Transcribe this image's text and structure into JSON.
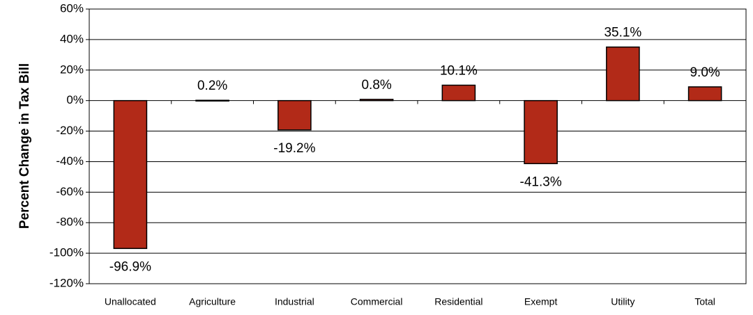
{
  "chart_data": {
    "type": "bar",
    "y_axis_label": "Percent Change in Tax Bill",
    "categories": [
      "Unallocated",
      "Agriculture",
      "Industrial",
      "Commercial",
      "Residential",
      "Exempt",
      "Utility",
      "Total"
    ],
    "values": [
      -96.9,
      0.2,
      -19.2,
      0.8,
      10.1,
      -41.3,
      35.1,
      9.0
    ],
    "value_labels": [
      "-96.9%",
      "0.2%",
      "-19.2%",
      "0.8%",
      "10.1%",
      "-41.3%",
      "35.1%",
      "9.0%"
    ],
    "color": "#b22a18",
    "ylim": [
      -120,
      60
    ],
    "yticks": [
      {
        "value": -120,
        "label": "-120%"
      },
      {
        "value": -100,
        "label": "-100%"
      },
      {
        "value": -80,
        "label": "-80%"
      },
      {
        "value": -60,
        "label": "-60%"
      },
      {
        "value": -40,
        "label": "-40%"
      },
      {
        "value": -20,
        "label": "-20%"
      },
      {
        "value": 0,
        "label": "0%"
      },
      {
        "value": 20,
        "label": "20%"
      },
      {
        "value": 40,
        "label": "40%"
      },
      {
        "value": 60,
        "label": "60%"
      }
    ],
    "grid": true
  }
}
